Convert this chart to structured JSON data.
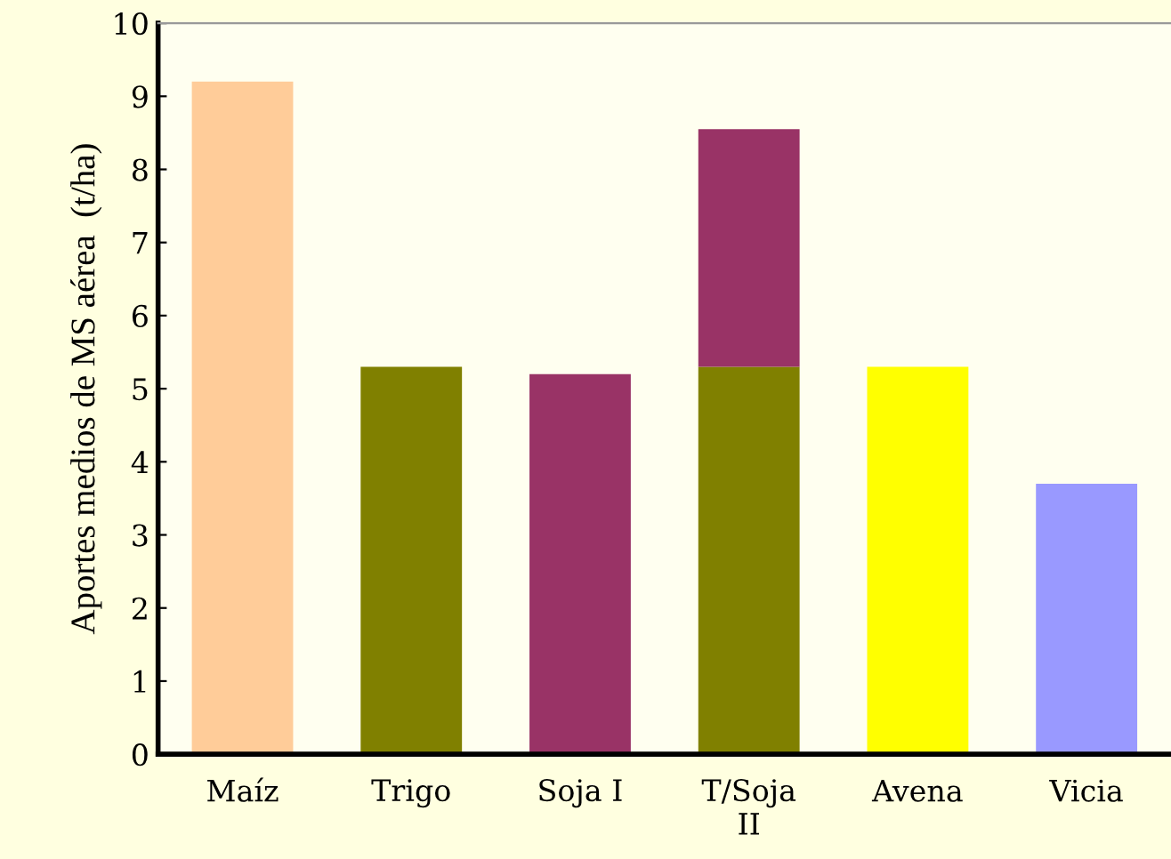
{
  "chart_data": {
    "type": "bar",
    "stacked": true,
    "ylabel": "Aportes medios de MS aérea  (t/ha)",
    "categories": [
      "Maíz",
      "Trigo",
      "Soja I",
      "T/Soja\nII",
      "Avena",
      "Vicia"
    ],
    "series": [
      {
        "colors": [
          "#ffcc99",
          "#808000",
          "#993366",
          "#808000",
          "#ffff00",
          "#9999ff"
        ],
        "values": [
          9.2,
          5.3,
          5.2,
          5.3,
          5.3,
          3.7
        ]
      },
      {
        "color": "#993366",
        "values": [
          null,
          null,
          null,
          3.25,
          null,
          null
        ]
      }
    ],
    "ylim": [
      0,
      10
    ],
    "yticks": [
      0,
      1,
      2,
      3,
      4,
      5,
      6,
      7,
      8,
      9,
      10
    ],
    "grid": false,
    "legend": false
  }
}
